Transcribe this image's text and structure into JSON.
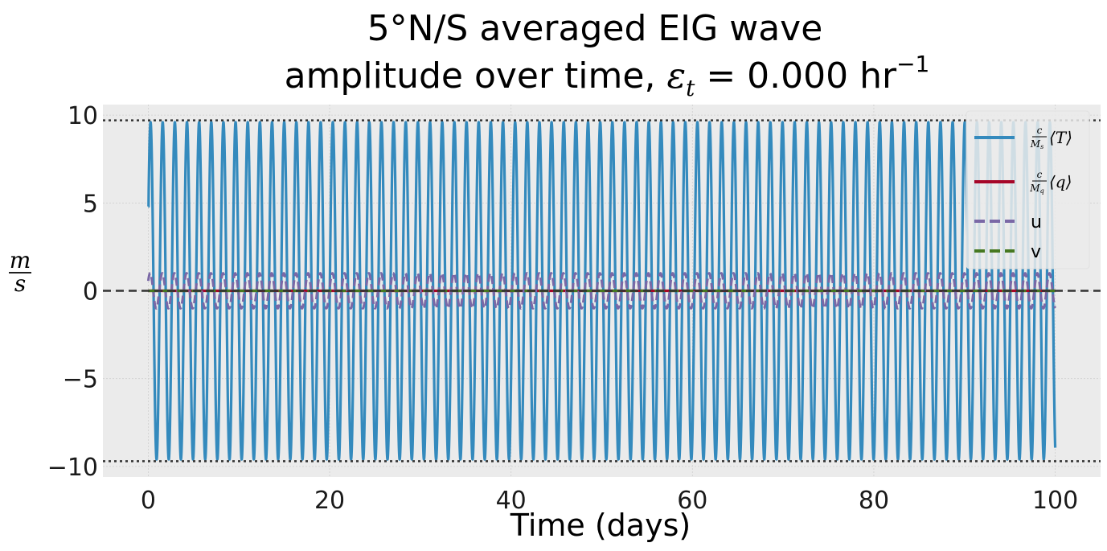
{
  "title": {
    "line1": "5°N/S averaged EIG wave",
    "line2_prefix": "amplitude over time, ",
    "line2_symbol": "ε",
    "line2_subscript": "t",
    "line2_value": " = 0.000 hr",
    "line2_exponent": "−1"
  },
  "colors": {
    "plot_background": "#ebebeb",
    "grid": "#cfcfcf",
    "T": "#348abd",
    "q": "#a60628",
    "u": "#7a68a6",
    "v": "#467821",
    "reference": "#333333"
  },
  "chart_data": {
    "type": "line",
    "xlabel": "Time (days)",
    "ylabel": {
      "numerator": "m",
      "denominator": "s"
    },
    "xlim": [
      -5,
      105
    ],
    "ylim": [
      -10.6,
      10.6
    ],
    "xticks": [
      0,
      20,
      40,
      60,
      80,
      100
    ],
    "yticks": [
      -10,
      -5,
      0,
      5,
      10
    ],
    "ytick_labels": [
      "−10",
      "−5",
      "0",
      "5",
      "10"
    ],
    "grid": true,
    "legend_position": "top-right",
    "reference_lines": [
      {
        "y": 0,
        "style": "dashed"
      },
      {
        "y": 9.7,
        "style": "dotted"
      },
      {
        "y": -9.7,
        "style": "dotted"
      }
    ],
    "series": [
      {
        "key": "T",
        "legend_numerator": "c",
        "legend_denominator": "M",
        "legend_den_sub": "s",
        "legend_bracket": "⟨T⟩",
        "style": "solid",
        "x_start": 0,
        "x_end": 100,
        "initial_value": 4.8,
        "amplitude": 9.6,
        "period_days": 1.34
      },
      {
        "key": "q",
        "legend_numerator": "c",
        "legend_denominator": "M",
        "legend_den_sub": "q",
        "legend_bracket": "⟨q⟩",
        "style": "solid",
        "x_start": 0,
        "x_end": 100,
        "constant_value": 0
      },
      {
        "key": "u",
        "name": "u",
        "style": "dashed",
        "x_start": 0,
        "x_end": 100,
        "amplitude": 1.0,
        "period_days": 1.34
      },
      {
        "key": "v",
        "name": "v",
        "style": "dashed",
        "x_start": 0,
        "x_end": 100,
        "constant_value": 0
      }
    ]
  }
}
